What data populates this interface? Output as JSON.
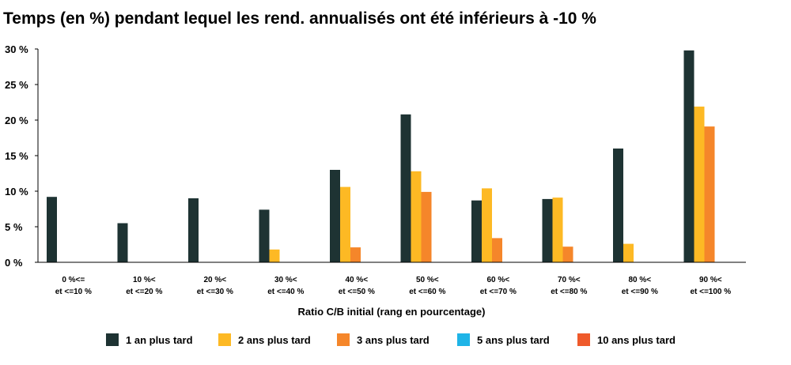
{
  "chart_data": {
    "type": "bar",
    "title": "Temps (en %) pendant lequel les rend. annualisés ont été inférieurs à -10 %",
    "xlabel": "Ratio C/B initial (rang en pourcentage)",
    "ylabel": "",
    "ylim": [
      0,
      30
    ],
    "yticks": [
      0,
      5,
      10,
      15,
      20,
      25,
      30
    ],
    "ytick_labels": [
      "0 %",
      "5 %",
      "10 %",
      "15 %",
      "20 %",
      "25 %",
      "30 %"
    ],
    "categories": [
      [
        "0 %<=",
        "et <=10 %"
      ],
      [
        "10 %<",
        "et <=20 %"
      ],
      [
        "20 %<",
        "et <=30 %"
      ],
      [
        "30 %<",
        "et <=40 %"
      ],
      [
        "40 %<",
        "et <=50 %"
      ],
      [
        "50 %<",
        "et <=60 %"
      ],
      [
        "60 %<",
        "et <=70 %"
      ],
      [
        "70 %<",
        "et <=80 %"
      ],
      [
        "80 %<",
        "et <=90 %"
      ],
      [
        "90 %<",
        "et <=100 %"
      ]
    ],
    "series": [
      {
        "name": "1 an plus tard",
        "color": "#1e3333",
        "values": [
          9.2,
          5.5,
          9.0,
          7.4,
          13.0,
          20.8,
          8.7,
          8.9,
          16.0,
          29.8
        ]
      },
      {
        "name": "2 ans plus tard",
        "color": "#fdb924",
        "values": [
          0,
          0,
          0,
          1.8,
          10.6,
          12.8,
          10.4,
          9.1,
          2.6,
          21.9
        ]
      },
      {
        "name": "3 ans plus tard",
        "color": "#f5862a",
        "values": [
          0,
          0,
          0,
          0,
          2.1,
          9.9,
          3.4,
          2.2,
          0,
          19.1
        ]
      },
      {
        "name": "5 ans plus tard",
        "color": "#1fb4e7",
        "values": [
          0,
          0,
          0,
          0,
          0,
          0,
          0,
          0,
          0,
          0
        ]
      },
      {
        "name": "10 ans plus tard",
        "color": "#ef5a2b",
        "values": [
          0,
          0,
          0,
          0,
          0,
          0,
          0,
          0,
          0,
          0
        ]
      }
    ],
    "grid": false,
    "legend_position": "bottom"
  }
}
